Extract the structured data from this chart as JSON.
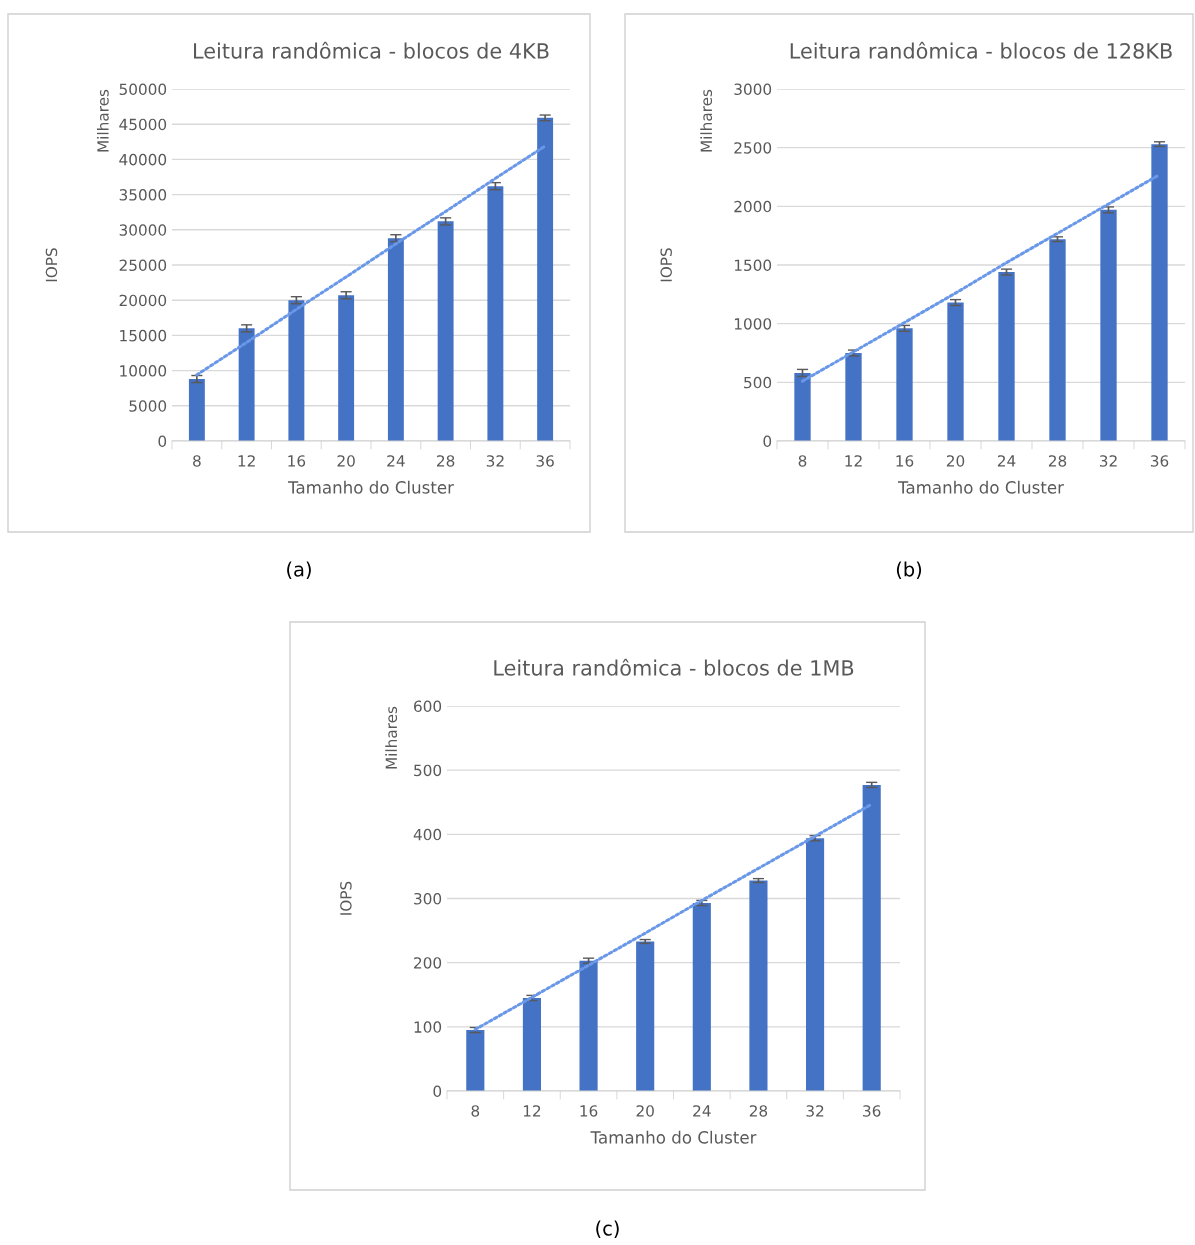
{
  "chart_data": [
    {
      "type": "bar",
      "title": "Leitura randômica - blocos de 4KB",
      "xlabel": "Tamanho do Cluster",
      "ylabel": "IOPS",
      "annotations": [
        "Milhares",
        "(a)"
      ],
      "categories": [
        "8",
        "12",
        "16",
        "20",
        "24",
        "28",
        "32",
        "36"
      ],
      "series": [
        {
          "color": "#4472c4",
          "values": [
            8800,
            16000,
            20000,
            20700,
            28800,
            31200,
            36200,
            45900
          ],
          "errors": [
            500,
            500,
            500,
            500,
            500,
            500,
            500,
            400
          ]
        },
        {
          "type": "line",
          "color": "#6a98e8",
          "line_style": "dotted",
          "values": [
            9400,
            14000,
            18700,
            23300,
            28000,
            32600,
            37300,
            41900
          ]
        }
      ],
      "ylim": [
        0,
        50000
      ],
      "yticks": [
        0,
        5000,
        10000,
        15000,
        20000,
        25000,
        30000,
        35000,
        40000,
        45000,
        50000
      ],
      "grid": "y",
      "legend": false
    },
    {
      "type": "bar",
      "title": "Leitura randômica - blocos de 128KB",
      "xlabel": "Tamanho do Cluster",
      "ylabel": "IOPS",
      "annotations": [
        "Milhares",
        "(b)"
      ],
      "categories": [
        "8",
        "12",
        "16",
        "20",
        "24",
        "28",
        "32",
        "36"
      ],
      "series": [
        {
          "color": "#4472c4",
          "values": [
            580,
            750,
            960,
            1180,
            1440,
            1720,
            1970,
            2530
          ],
          "errors": [
            30,
            25,
            25,
            25,
            25,
            20,
            25,
            20
          ]
        },
        {
          "type": "line",
          "color": "#6a98e8",
          "line_style": "dotted",
          "values": [
            510,
            760,
            1010,
            1260,
            1520,
            1770,
            2020,
            2270
          ]
        }
      ],
      "ylim": [
        0,
        3000
      ],
      "yticks": [
        0,
        500,
        1000,
        1500,
        2000,
        2500,
        3000
      ],
      "grid": "y",
      "legend": false
    },
    {
      "type": "bar",
      "title": "Leitura randômica - blocos de 1MB",
      "xlabel": "Tamanho do Cluster",
      "ylabel": "IOPS",
      "annotations": [
        "Milhares",
        "(c)"
      ],
      "categories": [
        "8",
        "12",
        "16",
        "20",
        "24",
        "28",
        "32",
        "36"
      ],
      "series": [
        {
          "color": "#4472c4",
          "values": [
            95,
            145,
            203,
            233,
            293,
            328,
            394,
            477
          ],
          "errors": [
            4,
            4,
            4,
            3,
            4,
            3,
            4,
            4
          ]
        },
        {
          "type": "line",
          "color": "#6a98e8",
          "line_style": "dotted",
          "values": [
            96,
            146,
            196,
            246,
            297,
            347,
            397,
            447
          ]
        }
      ],
      "ylim": [
        0,
        600
      ],
      "yticks": [
        0,
        100,
        200,
        300,
        400,
        500,
        600
      ],
      "grid": "y",
      "legend": false
    }
  ]
}
